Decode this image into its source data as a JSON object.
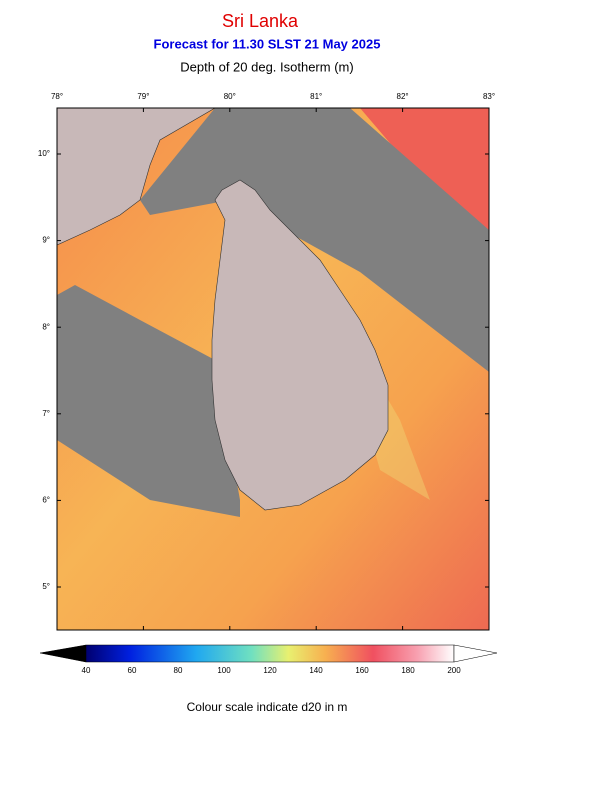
{
  "header": {
    "title": "Sri Lanka",
    "subtitle": "Forecast for  11.30 SLST 21 May 2025",
    "variable": "Depth of 20 deg. Isotherm (m)"
  },
  "map": {
    "lon_ticks": [
      "78°",
      "79°",
      "80°",
      "81°",
      "82°",
      "83°"
    ],
    "lat_ticks": [
      "10°",
      "9°",
      "8°",
      "7°",
      "6°",
      "5°"
    ]
  },
  "colorbar": {
    "ticks": [
      40,
      60,
      80,
      100,
      120,
      140,
      160,
      180,
      200
    ]
  },
  "caption": "Colour scale indicate d20 in m"
}
